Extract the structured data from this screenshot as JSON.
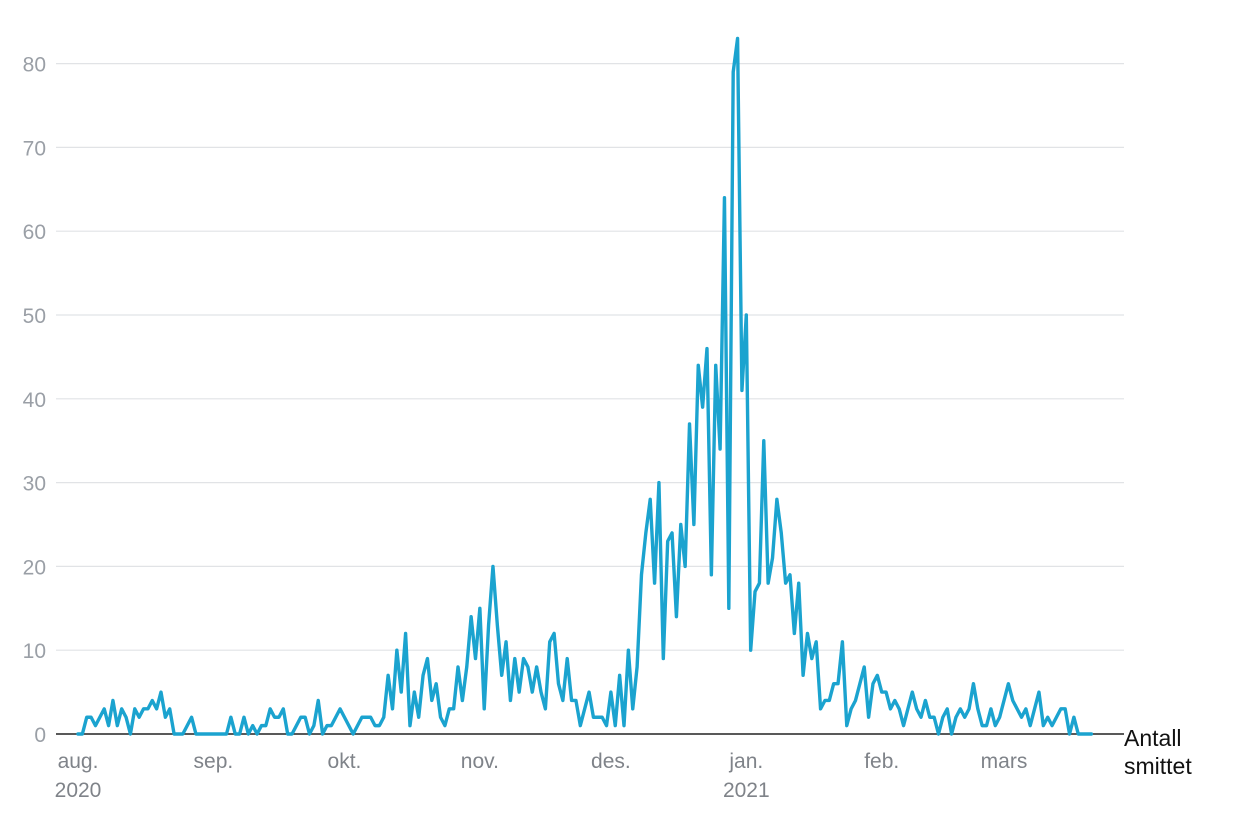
{
  "chart_data": {
    "type": "line",
    "title": "",
    "xlabel": "",
    "ylabel": "",
    "y_unit_label": [
      "Antall",
      "smittet"
    ],
    "ylim": [
      0,
      83
    ],
    "yticks": [
      0,
      10,
      20,
      30,
      40,
      50,
      60,
      70,
      80
    ],
    "grid": "horizontal",
    "line_color": "#1ba3cf",
    "x_ticks": [
      {
        "month": "aug.",
        "year": "2020",
        "day": 0
      },
      {
        "month": "sep.",
        "year": "",
        "day": 31
      },
      {
        "month": "okt.",
        "year": "",
        "day": 61
      },
      {
        "month": "nov.",
        "year": "",
        "day": 92
      },
      {
        "month": "des.",
        "year": "",
        "day": 122
      },
      {
        "month": "jan.",
        "year": "2021",
        "day": 153
      },
      {
        "month": "feb.",
        "year": "",
        "day": 184
      },
      {
        "month": "mars",
        "year": "",
        "day": 212
      }
    ],
    "x_range_days": [
      0,
      235
    ],
    "series": [
      {
        "x_start": "2020-08-01",
        "values": [
          0,
          0,
          2,
          2,
          1,
          2,
          3,
          1,
          4,
          1,
          3,
          2,
          0,
          3,
          2,
          3,
          3,
          4,
          3,
          5,
          2,
          3,
          0,
          0,
          0,
          1,
          2,
          0,
          0,
          0,
          0,
          0,
          0,
          0,
          0,
          2,
          0,
          0,
          2,
          0,
          1,
          0,
          1,
          1,
          3,
          2,
          2,
          3,
          0,
          0,
          1,
          2,
          2,
          0,
          1,
          4,
          0,
          1,
          1,
          2,
          3,
          2,
          1,
          0,
          1,
          2,
          2,
          2,
          1,
          1,
          2,
          7,
          3,
          10,
          5,
          12,
          1,
          5,
          2,
          7,
          9,
          4,
          6,
          2,
          1,
          3,
          3,
          8,
          4,
          8,
          14,
          9,
          15,
          3,
          13,
          20,
          13,
          7,
          11,
          4,
          9,
          5,
          9,
          8,
          5,
          8,
          5,
          3,
          11,
          12,
          6,
          4,
          9,
          4,
          4,
          1,
          3,
          5,
          2,
          2,
          2,
          1,
          5,
          1,
          7,
          1,
          10,
          3,
          8,
          19,
          24,
          28,
          18,
          30,
          9,
          23,
          24,
          14,
          25,
          20,
          37,
          25,
          44,
          39,
          46,
          19,
          44,
          34,
          64,
          15,
          79,
          83,
          41,
          50,
          10,
          17,
          18,
          35,
          18,
          21,
          28,
          24,
          18,
          19,
          12,
          18,
          7,
          12,
          9,
          11,
          3,
          4,
          4,
          6,
          6,
          11,
          1,
          3,
          4,
          6,
          8,
          2,
          6,
          7,
          5,
          5,
          3,
          4,
          3,
          1,
          3,
          5,
          3,
          2,
          4,
          2,
          2,
          0,
          2,
          3,
          0,
          2,
          3,
          2,
          3,
          6,
          3,
          1,
          1,
          3,
          1,
          2,
          4,
          6,
          4,
          3,
          2,
          3,
          1,
          3,
          5,
          1,
          2,
          1,
          2,
          3,
          3,
          0,
          2,
          0,
          0,
          0,
          0
        ]
      }
    ]
  }
}
